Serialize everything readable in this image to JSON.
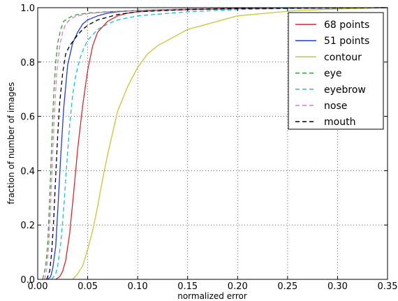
{
  "chart_data": {
    "type": "line",
    "title": "",
    "xlabel": "normalized error",
    "ylabel": "fraction of number of images",
    "xlim": [
      0,
      0.35
    ],
    "ylim": [
      0,
      1.0
    ],
    "x_ticks": [
      "0.00",
      "0.05",
      "0.10",
      "0.15",
      "0.20",
      "0.25",
      "0.30",
      "0.35"
    ],
    "y_ticks": [
      "0.0",
      "0.2",
      "0.4",
      "0.6",
      "0.8",
      "1.0"
    ],
    "grid": true,
    "legend_position": "top-right",
    "series": [
      {
        "name": "68 points",
        "color": "#d62728",
        "dash": "solid",
        "x": [
          0.018,
          0.022,
          0.025,
          0.028,
          0.032,
          0.036,
          0.04,
          0.045,
          0.05,
          0.055,
          0.06,
          0.07,
          0.08,
          0.09,
          0.1,
          0.12,
          0.15,
          0.2,
          0.25,
          0.3,
          0.35
        ],
        "y": [
          0.0,
          0.01,
          0.03,
          0.07,
          0.17,
          0.32,
          0.48,
          0.64,
          0.77,
          0.86,
          0.91,
          0.95,
          0.97,
          0.98,
          0.985,
          0.99,
          0.993,
          0.996,
          0.998,
          0.999,
          1.0
        ]
      },
      {
        "name": "51 points",
        "color": "#1f3fd6",
        "dash": "solid",
        "x": [
          0.01,
          0.013,
          0.015,
          0.018,
          0.02,
          0.023,
          0.026,
          0.03,
          0.035,
          0.04,
          0.045,
          0.05,
          0.06,
          0.07,
          0.08,
          0.1,
          0.15,
          0.2,
          0.25,
          0.3,
          0.35
        ],
        "y": [
          0.0,
          0.01,
          0.04,
          0.12,
          0.25,
          0.45,
          0.63,
          0.79,
          0.87,
          0.91,
          0.94,
          0.955,
          0.97,
          0.98,
          0.985,
          0.99,
          0.995,
          0.997,
          0.998,
          0.999,
          1.0
        ]
      },
      {
        "name": "contour",
        "color": "#c9c437",
        "dash": "solid",
        "x": [
          0.035,
          0.04,
          0.045,
          0.05,
          0.055,
          0.06,
          0.065,
          0.07,
          0.075,
          0.08,
          0.09,
          0.1,
          0.11,
          0.12,
          0.13,
          0.14,
          0.15,
          0.17,
          0.2,
          0.23,
          0.26,
          0.3,
          0.35
        ],
        "y": [
          0.0,
          0.02,
          0.05,
          0.11,
          0.18,
          0.27,
          0.37,
          0.46,
          0.54,
          0.62,
          0.71,
          0.78,
          0.83,
          0.86,
          0.88,
          0.9,
          0.92,
          0.94,
          0.97,
          0.98,
          0.99,
          0.995,
          1.0
        ]
      },
      {
        "name": "eye",
        "color": "#2ca02c",
        "dash": "dashed",
        "x": [
          0.005,
          0.008,
          0.01,
          0.012,
          0.014,
          0.016,
          0.018,
          0.02,
          0.023,
          0.026,
          0.03,
          0.035,
          0.04,
          0.05,
          0.07,
          0.1,
          0.15,
          0.2,
          0.25,
          0.35
        ],
        "y": [
          0.0,
          0.05,
          0.13,
          0.3,
          0.5,
          0.68,
          0.8,
          0.87,
          0.92,
          0.95,
          0.96,
          0.97,
          0.975,
          0.98,
          0.985,
          0.99,
          0.995,
          0.997,
          0.998,
          1.0
        ]
      },
      {
        "name": "eyebrow",
        "color": "#17becf",
        "dash": "dashed",
        "x": [
          0.014,
          0.018,
          0.02,
          0.023,
          0.026,
          0.029,
          0.032,
          0.035,
          0.038,
          0.042,
          0.046,
          0.05,
          0.055,
          0.06,
          0.07,
          0.08,
          0.1,
          0.15,
          0.2,
          0.25,
          0.35
        ],
        "y": [
          0.0,
          0.02,
          0.05,
          0.13,
          0.26,
          0.42,
          0.57,
          0.68,
          0.75,
          0.81,
          0.85,
          0.88,
          0.9,
          0.92,
          0.94,
          0.955,
          0.97,
          0.985,
          0.993,
          0.997,
          1.0
        ]
      },
      {
        "name": "nose",
        "color": "#e377c2",
        "dash": "dashed",
        "x": [
          0.007,
          0.009,
          0.011,
          0.013,
          0.015,
          0.017,
          0.019,
          0.022,
          0.025,
          0.028,
          0.032,
          0.036,
          0.04,
          0.05,
          0.07,
          0.1,
          0.15,
          0.2,
          0.25,
          0.35
        ],
        "y": [
          0.0,
          0.04,
          0.12,
          0.28,
          0.47,
          0.63,
          0.76,
          0.86,
          0.91,
          0.94,
          0.955,
          0.965,
          0.97,
          0.978,
          0.985,
          0.99,
          0.995,
          0.997,
          0.998,
          1.0
        ]
      },
      {
        "name": "mouth",
        "color": "#000000",
        "dash": "dashed",
        "x": [
          0.009,
          0.012,
          0.014,
          0.016,
          0.018,
          0.02,
          0.022,
          0.025,
          0.028,
          0.032,
          0.036,
          0.04,
          0.045,
          0.05,
          0.06,
          0.07,
          0.08,
          0.1,
          0.15,
          0.2,
          0.25,
          0.35
        ],
        "y": [
          0.0,
          0.03,
          0.1,
          0.22,
          0.38,
          0.53,
          0.65,
          0.76,
          0.83,
          0.86,
          0.88,
          0.9,
          0.92,
          0.935,
          0.955,
          0.965,
          0.975,
          0.985,
          0.993,
          0.997,
          0.998,
          1.0
        ]
      }
    ]
  }
}
